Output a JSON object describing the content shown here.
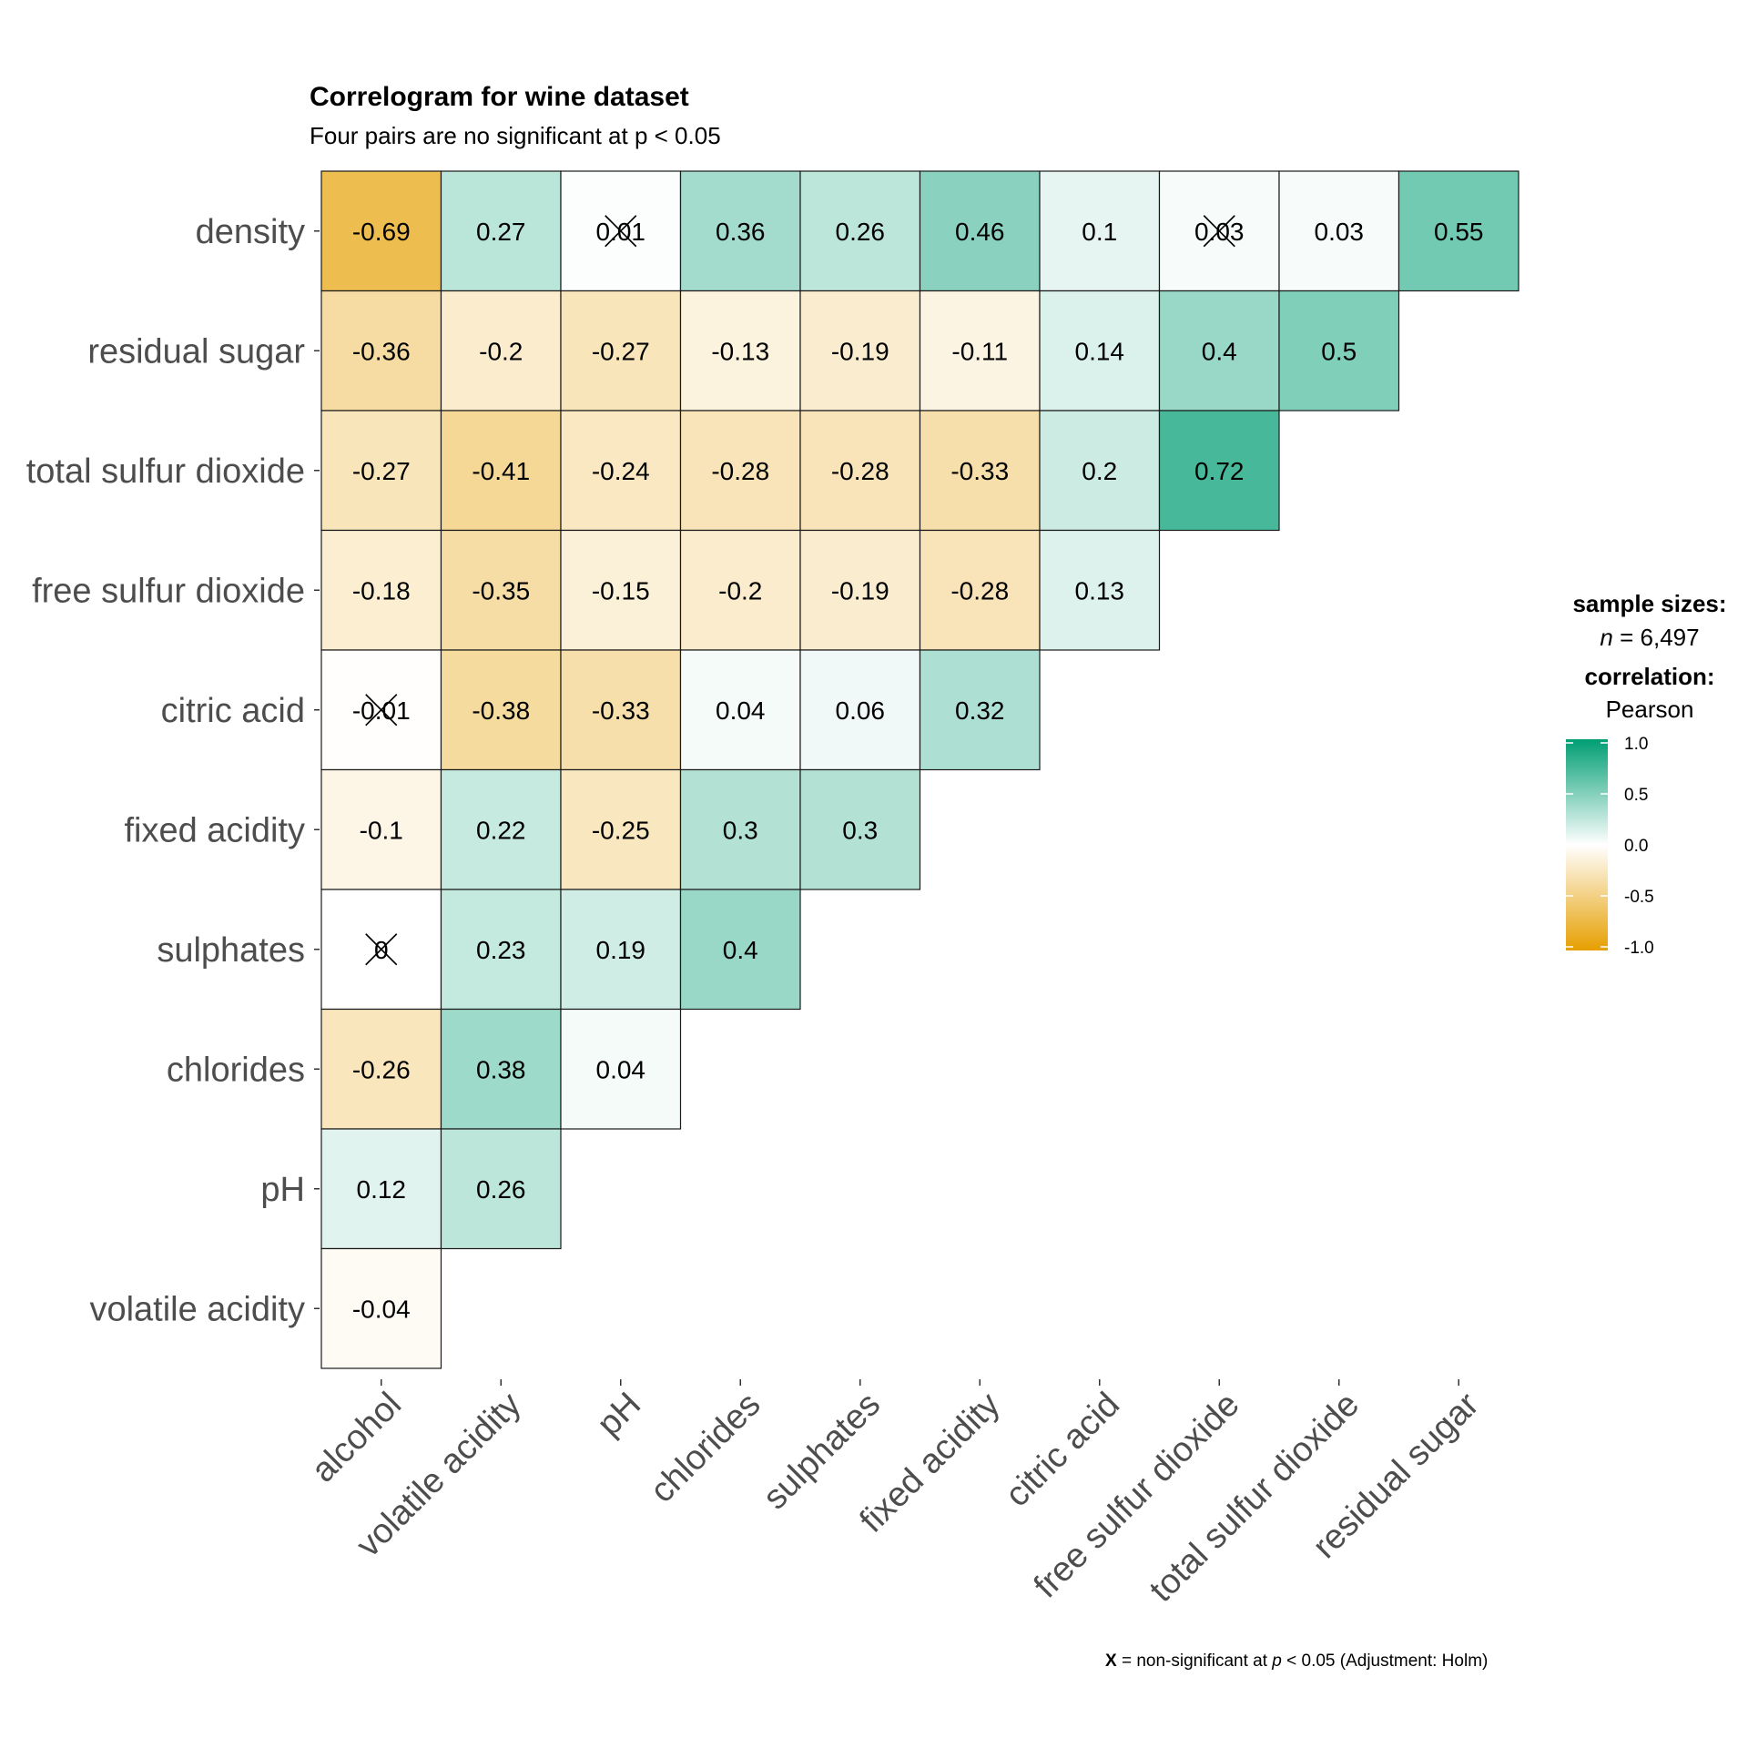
{
  "chart_data": {
    "type": "heatmap",
    "title": "Correlogram for wine dataset",
    "subtitle": "Four pairs are no significant at p < 0.05",
    "x_labels": [
      "alcohol",
      "volatile acidity",
      "pH",
      "chlorides",
      "sulphates",
      "fixed acidity",
      "citric acid",
      "free sulfur dioxide",
      "total sulfur dioxide",
      "residual sugar"
    ],
    "y_labels": [
      "density",
      "residual sugar",
      "total sulfur dioxide",
      "free sulfur dioxide",
      "citric acid",
      "fixed acidity",
      "sulphates",
      "chlorides",
      "pH",
      "volatile acidity"
    ],
    "values": [
      [
        -0.69,
        0.27,
        0.01,
        0.36,
        0.26,
        0.46,
        0.1,
        0.03,
        0.03,
        0.55
      ],
      [
        -0.36,
        -0.2,
        -0.27,
        -0.13,
        -0.19,
        -0.11,
        0.14,
        0.4,
        0.5
      ],
      [
        -0.27,
        -0.41,
        -0.24,
        -0.28,
        -0.28,
        -0.33,
        0.2,
        0.72
      ],
      [
        -0.18,
        -0.35,
        -0.15,
        -0.2,
        -0.19,
        -0.28,
        0.13
      ],
      [
        -0.01,
        -0.38,
        -0.33,
        0.04,
        0.06,
        0.32
      ],
      [
        -0.1,
        0.22,
        -0.25,
        0.3,
        0.3
      ],
      [
        0,
        0.23,
        0.19,
        0.4
      ],
      [
        -0.26,
        0.38,
        0.04
      ],
      [
        0.12,
        0.26
      ],
      [
        -0.04
      ]
    ],
    "labels": [
      [
        "-0.69",
        "0.27",
        "0.01",
        "0.36",
        "0.26",
        "0.46",
        "0.1",
        "0.03",
        "0.03",
        "0.55"
      ],
      [
        "-0.36",
        "-0.2",
        "-0.27",
        "-0.13",
        "-0.19",
        "-0.11",
        "0.14",
        "0.4",
        "0.5"
      ],
      [
        "-0.27",
        "-0.41",
        "-0.24",
        "-0.28",
        "-0.28",
        "-0.33",
        "0.2",
        "0.72"
      ],
      [
        "-0.18",
        "-0.35",
        "-0.15",
        "-0.2",
        "-0.19",
        "-0.28",
        "0.13"
      ],
      [
        "-0.01",
        "-0.38",
        "-0.33",
        "0.04",
        "0.06",
        "0.32"
      ],
      [
        "-0.1",
        "0.22",
        "-0.25",
        "0.3",
        "0.3"
      ],
      [
        "0",
        "0.23",
        "0.19",
        "0.4"
      ],
      [
        "-0.26",
        "0.38",
        "0.04"
      ],
      [
        "0.12",
        "0.26"
      ],
      [
        "-0.04"
      ]
    ],
    "non_significant": [
      [
        0,
        2
      ],
      [
        0,
        7
      ],
      [
        4,
        0
      ],
      [
        6,
        0
      ]
    ],
    "color_scale": {
      "low": "#E69F00",
      "mid": "#FFFFFF",
      "high": "#009E73",
      "limits": [
        -1,
        1
      ]
    },
    "legend": {
      "sample_sizes_heading": "sample sizes:",
      "n_symbol": "n",
      "n_text": " = 6,497",
      "correlation_heading": "correlation:",
      "method": "Pearson",
      "ticks": [
        "1.0",
        "0.5",
        "0.0",
        "-0.5",
        "-1.0"
      ],
      "tick_values": [
        1,
        0.5,
        0,
        -0.5,
        -1
      ],
      "position": "right"
    },
    "caption": {
      "symbol": "X",
      "part1": " = non-significant at ",
      "p": "p",
      "part2": " < 0.05 (Adjustment: Holm)"
    }
  }
}
